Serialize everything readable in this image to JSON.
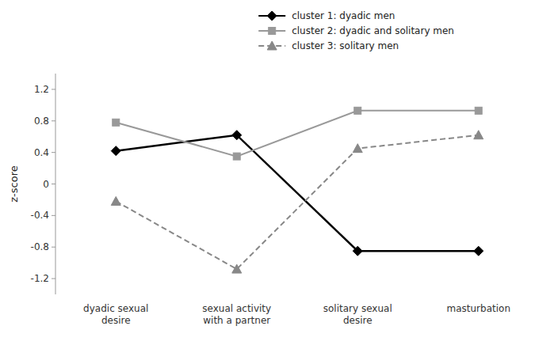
{
  "chart_data": {
    "type": "line",
    "categories": [
      "dyadic sexual\ndesire",
      "sexual activity\nwith a partner",
      "solitary sexual\ndesire",
      "masturbation"
    ],
    "series": [
      {
        "name": "cluster 1: dyadic men",
        "color": "#000000",
        "marker": "diamond",
        "line_style": "solid",
        "values": [
          0.42,
          0.62,
          -0.85,
          -0.85
        ]
      },
      {
        "name": "cluster 2: dyadic and solitary men",
        "color": "#999999",
        "marker": "square",
        "line_style": "solid",
        "values": [
          0.78,
          0.35,
          0.93,
          0.93
        ]
      },
      {
        "name": "cluster 3: solitary men",
        "color": "#888888",
        "marker": "triangle",
        "line_style": "dashed",
        "values": [
          -0.22,
          -1.08,
          0.45,
          0.62
        ]
      }
    ],
    "ylabel": "z-score",
    "ylim": [
      -1.4,
      1.4
    ],
    "yticks": [
      -1.2,
      -0.8,
      -0.4,
      0,
      0.4,
      0.8,
      1.2
    ],
    "grid": false,
    "legend": "upper right"
  }
}
